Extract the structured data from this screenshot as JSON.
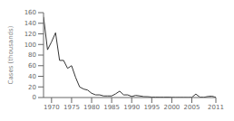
{
  "chart_data": {
    "type": "line",
    "x": [
      1968,
      1969,
      1970,
      1971,
      1972,
      1973,
      1974,
      1975,
      1976,
      1977,
      1978,
      1979,
      1980,
      1981,
      1982,
      1983,
      1984,
      1985,
      1986,
      1987,
      1988,
      1989,
      1990,
      1991,
      1992,
      1993,
      1994,
      1995,
      1996,
      1997,
      1998,
      1999,
      2000,
      2001,
      2002,
      2003,
      2004,
      2005,
      2006,
      2007,
      2008,
      2009,
      2010,
      2011
    ],
    "values": [
      152,
      90,
      105,
      122,
      70,
      70,
      55,
      60,
      38,
      20,
      16,
      14,
      8,
      5,
      5,
      3,
      3,
      3,
      7,
      12,
      5,
      5,
      2,
      4,
      3,
      1.7,
      1.5,
      0.9,
      0.8,
      0.7,
      0.7,
      0.8,
      0.4,
      0.2,
      0.3,
      0.3,
      0.2,
      0.3,
      6.5,
      0.8,
      0.5,
      1.9,
      2.5,
      0.4
    ],
    "color": "#333333",
    "ylabel": "Cases (thousands)",
    "xlim": [
      1968,
      2011
    ],
    "ylim": [
      0,
      160
    ],
    "xticks": [
      1970,
      1975,
      1980,
      1985,
      1990,
      1995,
      2000,
      2005,
      2011
    ],
    "yticks": [
      0,
      20,
      40,
      60,
      80,
      100,
      120,
      140,
      160
    ],
    "grid": false
  }
}
